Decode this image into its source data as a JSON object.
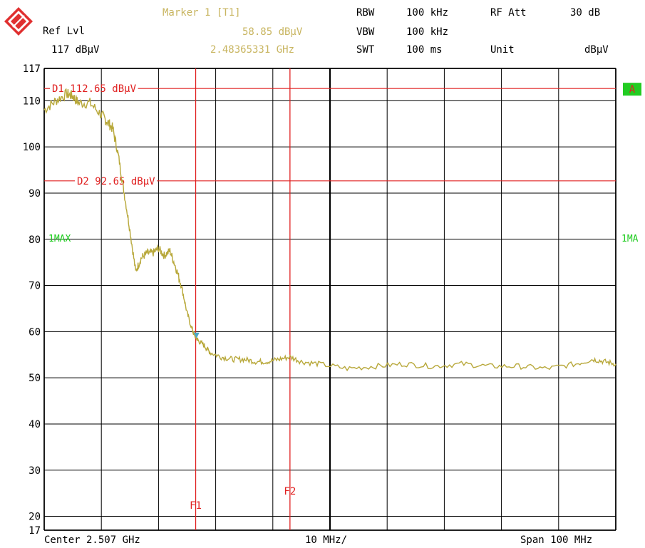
{
  "header": {
    "ref_lvl_label": "Ref Lvl",
    "ref_lvl_value": "117 dBµV",
    "marker_title": "Marker 1 [T1]",
    "marker_level": "58.85 dBµV",
    "marker_freq": "2.48365331 GHz",
    "rbw_label": "RBW",
    "rbw_value": "100 kHz",
    "vbw_label": "VBW",
    "vbw_value": "100 kHz",
    "swt_label": "SWT",
    "swt_value": "100 ms",
    "rf_att_label": "RF Att",
    "rf_att_value": "30 dB",
    "unit_label": "Unit",
    "unit_value": "dBµV"
  },
  "footer": {
    "center": "Center 2.507 GHz",
    "per_div": "10 MHz/",
    "span": "Span 100 MHz"
  },
  "chart_data": {
    "type": "line",
    "x_unit": "GHz",
    "y_unit": "dBµV",
    "xlim": [
      2.457,
      2.557
    ],
    "ylim": [
      17,
      117
    ],
    "yticks": [
      "117",
      "110",
      "100",
      "90",
      "80",
      "70",
      "60",
      "50",
      "40",
      "30",
      "20",
      "17"
    ],
    "ytick_values": [
      117,
      110,
      100,
      90,
      80,
      70,
      60,
      50,
      40,
      30,
      20,
      17
    ],
    "grid": true,
    "trace_label": "1MAX",
    "trace_label_right": "1MA",
    "trace_badge": "A",
    "display_lines": [
      {
        "label": "D1",
        "text": "112.65 dBµV",
        "value": 112.65
      },
      {
        "label": "D2",
        "text": "92.65 dBµV",
        "value": 92.65
      }
    ],
    "freq_lines": [
      {
        "label": "F1",
        "value": 2.4835
      },
      {
        "label": "F2",
        "value": 2.5
      }
    ],
    "marker": {
      "x": 2.48365331,
      "y": 58.85
    },
    "series": [
      {
        "color": "#b8a83a",
        "x": [
          2.457,
          2.459,
          2.461,
          2.462,
          2.463,
          2.465,
          2.467,
          2.468,
          2.469,
          2.47,
          2.471,
          2.472,
          2.473,
          2.474,
          2.475,
          2.476,
          2.477,
          2.478,
          2.479,
          2.48,
          2.481,
          2.482,
          2.483,
          2.4835,
          2.484,
          2.485,
          2.486,
          2.488,
          2.49,
          2.492,
          2.494,
          2.496,
          2.498,
          2.5,
          2.502,
          2.505,
          2.51,
          2.515,
          2.52,
          2.525,
          2.53,
          2.535,
          2.54,
          2.545,
          2.55,
          2.553,
          2.555,
          2.557
        ],
        "y": [
          108.0,
          110.0,
          111.5,
          111.0,
          109.5,
          109.5,
          107.0,
          105.5,
          104.0,
          98.0,
          90.0,
          82.0,
          73.0,
          76.0,
          77.0,
          77.0,
          78.0,
          76.5,
          77.5,
          74.0,
          70.0,
          64.0,
          60.0,
          58.85,
          58.0,
          57.0,
          55.5,
          54.5,
          54.0,
          54.0,
          53.5,
          53.5,
          54.0,
          54.5,
          53.5,
          53.0,
          52.0,
          52.5,
          53.0,
          52.5,
          53.0,
          52.5,
          52.5,
          52.0,
          53.0,
          54.0,
          53.5,
          53.0
        ]
      }
    ]
  }
}
